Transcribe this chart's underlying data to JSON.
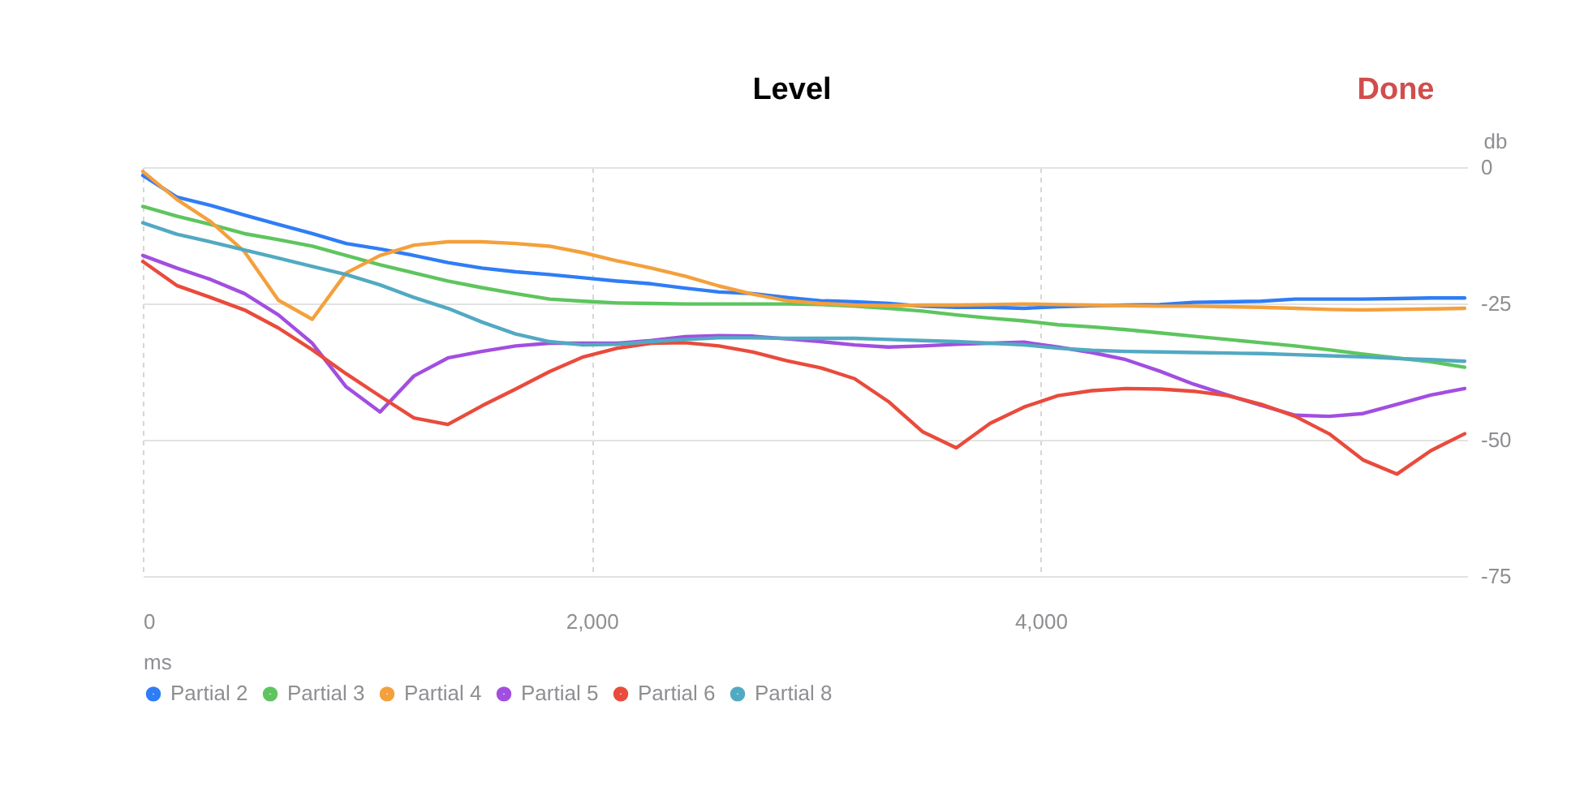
{
  "chart_data": {
    "type": "line",
    "title": "Level",
    "xlabel": "ms",
    "ylabel": "db",
    "annotations": [
      "Done"
    ],
    "x": [
      0,
      151,
      302,
      453,
      604,
      755,
      906,
      1057,
      1208,
      1359,
      1510,
      1661,
      1812,
      1963,
      2114,
      2265,
      2416,
      2567,
      2718,
      2869,
      3020,
      3171,
      3322,
      3473,
      3624,
      3775,
      3926,
      4077,
      4228,
      4379,
      4530,
      4681,
      4832,
      4983,
      5134,
      5285,
      5436,
      5587,
      5738,
      5889
    ],
    "xlim": [
      0,
      5900
    ],
    "xticks": [
      0,
      {
        "value": 2000,
        "label": "2,000"
      },
      {
        "value": 4000,
        "label": "4,000"
      }
    ],
    "ylim": [
      -75,
      0
    ],
    "yticks": [
      0,
      -25,
      -50,
      -75
    ],
    "grid": true,
    "legend": "bottom",
    "series": [
      {
        "name": "Partial 2",
        "color": "#2f7df6",
        "values": [
          -1.5,
          -5.5,
          -7.0,
          -8.8,
          -10.5,
          -12.2,
          -14.0,
          -15.0,
          -16.2,
          -17.5,
          -18.5,
          -19.2,
          -19.7,
          -20.3,
          -20.9,
          -21.4,
          -22.2,
          -22.9,
          -23.2,
          -23.9,
          -24.5,
          -24.7,
          -25.0,
          -25.5,
          -25.7,
          -25.7,
          -25.9,
          -25.6,
          -25.4,
          -25.3,
          -25.2,
          -24.8,
          -24.7,
          -24.6,
          -24.2,
          -24.2,
          -24.2,
          -24.1,
          -24.0,
          -24.0
        ]
      },
      {
        "name": "Partial 3",
        "color": "#5ec55e",
        "values": [
          -7.2,
          -9.0,
          -10.5,
          -12.2,
          -13.3,
          -14.5,
          -16.2,
          -17.9,
          -19.4,
          -20.9,
          -22.1,
          -23.2,
          -24.2,
          -24.6,
          -24.9,
          -25.0,
          -25.1,
          -25.1,
          -25.1,
          -25.1,
          -25.2,
          -25.5,
          -25.9,
          -26.4,
          -27.1,
          -27.7,
          -28.2,
          -28.9,
          -29.3,
          -29.8,
          -30.4,
          -31.0,
          -31.6,
          -32.2,
          -32.8,
          -33.5,
          -34.3,
          -35.0,
          -35.7,
          -36.7
        ]
      },
      {
        "name": "Partial 4",
        "color": "#f4a03c",
        "values": [
          -0.8,
          -5.9,
          -10.0,
          -15.5,
          -24.4,
          -27.9,
          -19.4,
          -16.2,
          -14.3,
          -13.7,
          -13.7,
          -14.0,
          -14.5,
          -15.7,
          -17.2,
          -18.5,
          -20.0,
          -21.8,
          -23.3,
          -24.5,
          -25.0,
          -25.3,
          -25.4,
          -25.3,
          -25.3,
          -25.2,
          -25.1,
          -25.2,
          -25.3,
          -25.4,
          -25.5,
          -25.5,
          -25.6,
          -25.7,
          -25.9,
          -26.1,
          -26.2,
          -26.1,
          -26.0,
          -25.9
        ]
      },
      {
        "name": "Partial 5",
        "color": "#a24ee0",
        "values": [
          -16.2,
          -18.5,
          -20.6,
          -23.2,
          -27.1,
          -32.3,
          -40.3,
          -44.9,
          -38.3,
          -35.0,
          -33.8,
          -32.8,
          -32.3,
          -32.3,
          -32.3,
          -31.8,
          -31.1,
          -30.9,
          -31.0,
          -31.5,
          -32.0,
          -32.6,
          -33.0,
          -32.8,
          -32.5,
          -32.3,
          -32.1,
          -33.0,
          -34.0,
          -35.3,
          -37.4,
          -39.8,
          -41.8,
          -43.7,
          -45.5,
          -45.7,
          -45.2,
          -43.5,
          -41.8,
          -40.6
        ]
      },
      {
        "name": "Partial 6",
        "color": "#e94b3c",
        "values": [
          -17.3,
          -21.7,
          -23.9,
          -26.2,
          -29.5,
          -33.5,
          -37.9,
          -42.0,
          -46.0,
          -47.2,
          -43.8,
          -40.7,
          -37.5,
          -34.8,
          -33.2,
          -32.3,
          -32.2,
          -32.8,
          -33.9,
          -35.5,
          -36.8,
          -38.8,
          -43.0,
          -48.5,
          -51.5,
          -47.0,
          -44.0,
          -41.9,
          -41.0,
          -40.6,
          -40.7,
          -41.1,
          -41.9,
          -43.5,
          -45.7,
          -48.9,
          -53.7,
          -56.3,
          -52.0,
          -48.9
        ]
      },
      {
        "name": "Partial 8",
        "color": "#52a9c2",
        "values": [
          -10.2,
          -12.3,
          -13.7,
          -15.2,
          -16.7,
          -18.2,
          -19.7,
          -21.6,
          -23.9,
          -25.9,
          -28.4,
          -30.6,
          -32.0,
          -32.6,
          -32.5,
          -32.0,
          -31.6,
          -31.3,
          -31.3,
          -31.4,
          -31.4,
          -31.4,
          -31.6,
          -31.8,
          -32.0,
          -32.3,
          -32.6,
          -33.2,
          -33.6,
          -33.8,
          -33.9,
          -34.0,
          -34.1,
          -34.2,
          -34.4,
          -34.6,
          -34.8,
          -35.1,
          -35.3,
          -35.6
        ]
      }
    ]
  }
}
